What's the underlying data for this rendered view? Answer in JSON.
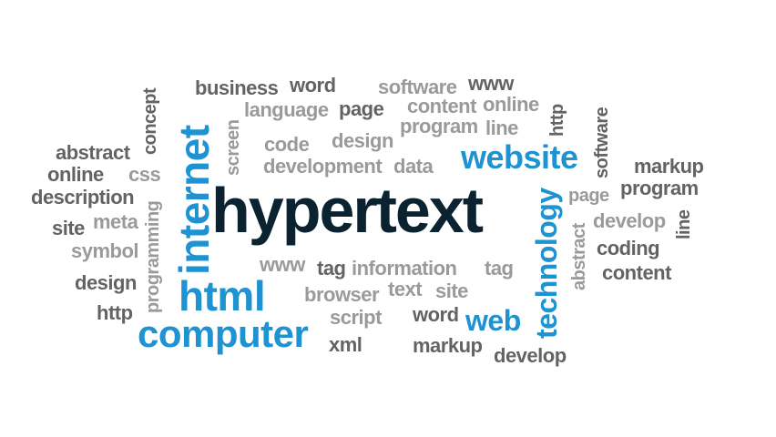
{
  "words": {
    "hypertext": "hypertext",
    "internet": "internet",
    "html": "html",
    "computer": "computer",
    "website": "website",
    "technology": "technology",
    "web": "web",
    "business": "business",
    "word_top": "word",
    "software_top": "software",
    "www_top": "www",
    "language": "language",
    "page_top": "page",
    "content_top": "content",
    "online_top": "online",
    "program_top": "program",
    "line_top": "line",
    "http_v": "http",
    "software_v": "software",
    "concept": "concept",
    "screen": "screen",
    "code": "code",
    "design_mid": "design",
    "development": "development",
    "data": "data",
    "abstract_left": "abstract",
    "online_left": "online",
    "css": "css",
    "description": "description",
    "site_left": "site",
    "meta": "meta",
    "symbol": "symbol",
    "programming": "programming",
    "design_left": "design",
    "http_left": "http",
    "markup_right": "markup",
    "program_right": "program",
    "page_right": "page",
    "develop_right": "develop",
    "line_right": "line",
    "abstract_v": "abstract",
    "coding": "coding",
    "content_right": "content",
    "www_mid": "www",
    "tag_mid": "tag",
    "information": "information",
    "tag_right": "tag",
    "browser": "browser",
    "text": "text",
    "site_mid": "site",
    "script": "script",
    "word_mid": "word",
    "xml": "xml",
    "markup_bottom": "markup",
    "develop_bottom": "develop"
  },
  "colors": {
    "dark": "#0b2230",
    "blue": "#1f92d1",
    "gray": "#636363",
    "light": "#9a9a9a"
  }
}
